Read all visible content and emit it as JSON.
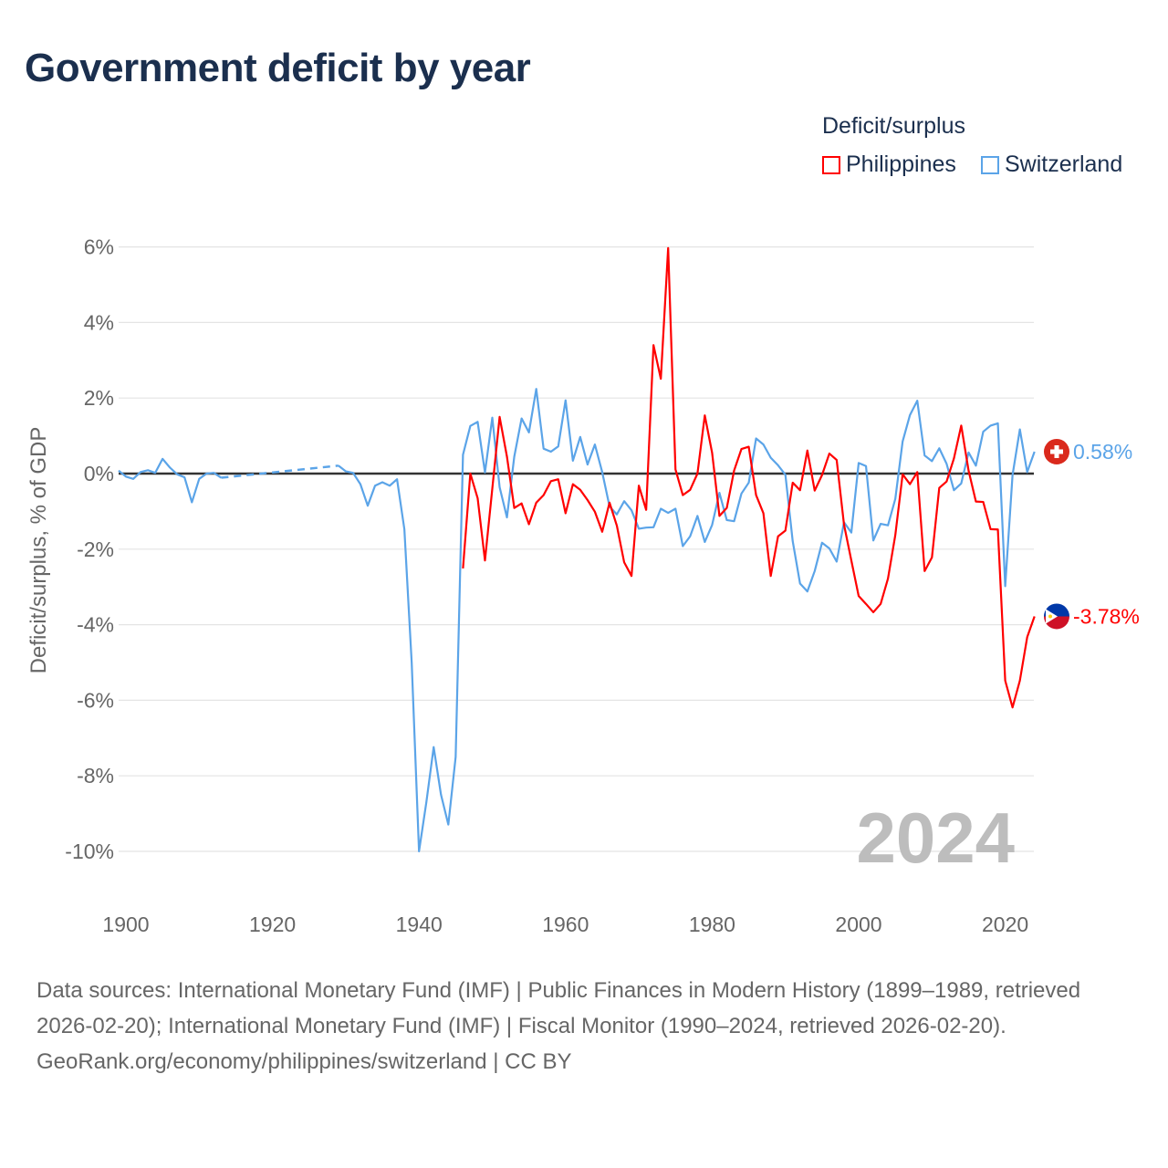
{
  "title": "Government deficit by year",
  "legend": {
    "title": "Deficit/surplus",
    "items": [
      {
        "name": "Philippines",
        "color": "#ff0000"
      },
      {
        "name": "Switzerland",
        "color": "#5ba4e8"
      }
    ]
  },
  "footer": {
    "sources": "Data sources: International Monetary Fund (IMF) | Public Finances in Modern History (1899–1989, retrieved 2026-02-20); International Monetary Fund (IMF) | Fiscal Monitor (1990–2024, retrieved 2026-02-20).",
    "credit": "GeoRank.org/economy/philippines/switzerland | CC BY"
  },
  "chart_data": {
    "type": "line",
    "title": "Government deficit by year",
    "xlabel": "",
    "ylabel": "Deficit/surplus, % of GDP",
    "xlim": [
      1899,
      2024
    ],
    "ylim": [
      -10,
      6
    ],
    "x_ticks": [
      "1900",
      "1920",
      "1940",
      "1960",
      "1980",
      "2000",
      "2020"
    ],
    "y_ticks": [
      "6%",
      "4%",
      "2%",
      "0%",
      "-2%",
      "-4%",
      "-6%",
      "-8%",
      "-10%"
    ],
    "grid": true,
    "year_watermark": "2024",
    "series": [
      {
        "name": "Switzerland",
        "color": "#5ba4e8",
        "end_label": "0.58%",
        "start_year": 1899,
        "values": [
          0.08,
          -0.08,
          -0.14,
          0.04,
          0.09,
          0.02,
          0.39,
          0.16,
          -0.02,
          -0.1,
          -0.76,
          -0.14,
          0,
          0.02,
          -0.11,
          null,
          null,
          null,
          null,
          null,
          null,
          null,
          null,
          null,
          null,
          null,
          null,
          null,
          null,
          null,
          0.21,
          0.06,
          0.02,
          -0.28,
          -0.85,
          -0.32,
          -0.23,
          -0.32,
          -0.15,
          -1.47,
          -5.0,
          -10.0,
          -8.7,
          -7.24,
          -8.5,
          -9.29,
          -7.5,
          0.5,
          1.26,
          1.37,
          0.03,
          1.48,
          -0.36,
          -1.16,
          0.45,
          1.46,
          1.09,
          2.24,
          0.66,
          0.58,
          0.72,
          1.94,
          0.34,
          0.97,
          0.24,
          0.77,
          0.04,
          -0.87,
          -1.08,
          -0.73,
          -0.97,
          -1.46,
          -1.43,
          -1.42,
          -0.93,
          -1.04,
          -0.93,
          -1.92,
          -1.66,
          -1.12,
          -1.81,
          -1.36,
          -0.51,
          -1.23,
          -1.26,
          -0.53,
          -0.24,
          0.93,
          0.77,
          0.42,
          0.22,
          -0.03,
          -1.79,
          -2.91,
          -3.12,
          -2.58,
          -1.83,
          -1.98,
          -2.33,
          -1.29,
          -1.56,
          0.28,
          0.2,
          -1.77,
          -1.33,
          -1.37,
          -0.67,
          0.85,
          1.55,
          1.93,
          0.48,
          0.33,
          0.67,
          0.26,
          -0.44,
          -0.26,
          0.56,
          0.21,
          1.11,
          1.27,
          1.33,
          -2.98,
          -0.04,
          1.17,
          0.04,
          0.58
        ]
      },
      {
        "name": "Philippines",
        "color": "#ff0000",
        "end_label": "-3.78%",
        "start_year": 1946,
        "values": [
          -2.51,
          0,
          -0.65,
          -2.3,
          -0.4,
          1.5,
          0.45,
          -0.91,
          -0.79,
          -1.34,
          -0.77,
          -0.57,
          -0.2,
          -0.15,
          -1.05,
          -0.28,
          -0.43,
          -0.7,
          -1.01,
          -1.54,
          -0.77,
          -1.38,
          -2.35,
          -2.71,
          -0.32,
          -0.96,
          3.4,
          2.51,
          5.97,
          0.11,
          -0.57,
          -0.43,
          0,
          1.54,
          0.55,
          -1.12,
          -0.91,
          0.08,
          0.65,
          0.71,
          -0.57,
          -1.05,
          -2.71,
          -1.66,
          -1.51,
          -0.24,
          -0.44,
          0.61,
          -0.45,
          -0.04,
          0.53,
          0.36,
          -1.35,
          -2.3,
          -3.24,
          -3.45,
          -3.67,
          -3.45,
          -2.78,
          -1.63,
          -0.02,
          -0.28,
          0.04,
          -2.58,
          -2.22,
          -0.38,
          -0.21,
          0.4,
          1.27,
          0.08,
          -0.74,
          -0.75,
          -1.47,
          -1.48,
          -5.48,
          -6.19,
          -5.48,
          -4.33,
          -3.78
        ]
      }
    ]
  }
}
